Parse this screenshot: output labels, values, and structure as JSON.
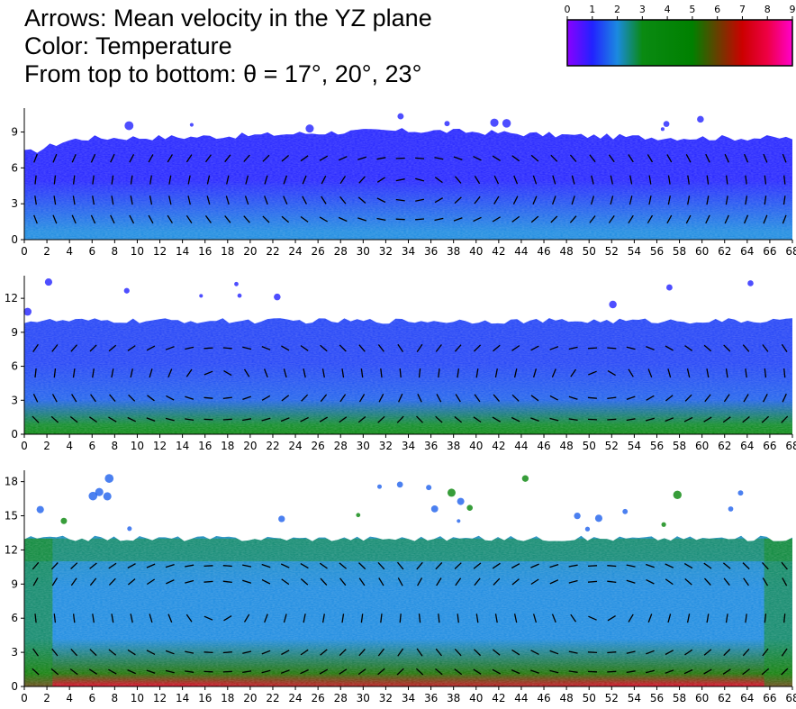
{
  "title_lines": [
    "Arrows: Mean velocity in the YZ plane",
    "Color: Temperature",
    "From top to bottom: θ = 17°, 20°, 23°"
  ],
  "colorbar": {
    "ticks": [
      "0",
      "1",
      "2",
      "3",
      "4",
      "5",
      "6",
      "7",
      "8",
      "9"
    ],
    "min": 0,
    "max": 9,
    "stops": [
      {
        "value": 0,
        "color": "#8a00ff"
      },
      {
        "value": 1,
        "color": "#2222ff"
      },
      {
        "value": 2,
        "color": "#1b8ae0"
      },
      {
        "value": 3,
        "color": "#0a8a12"
      },
      {
        "value": 5,
        "color": "#008000"
      },
      {
        "value": 7,
        "color": "#cc0000"
      },
      {
        "value": 8,
        "color": "#ee0044"
      },
      {
        "value": 9,
        "color": "#ff00cc"
      }
    ]
  },
  "chart_data": [
    {
      "type": "heatmap",
      "theta": "17°",
      "xticks": [
        "0",
        "2",
        "4",
        "6",
        "8",
        "10",
        "12",
        "14",
        "16",
        "18",
        "20",
        "22",
        "24",
        "26",
        "28",
        "30",
        "32",
        "34",
        "36",
        "38",
        "40",
        "42",
        "44",
        "46",
        "48",
        "50",
        "52",
        "54",
        "56",
        "58",
        "60",
        "62",
        "64",
        "66",
        "68"
      ],
      "yticks": [
        "0",
        "3",
        "6",
        "9"
      ],
      "xlim": [
        0,
        68
      ],
      "ylim": [
        0,
        11
      ],
      "surface_height": 8.5,
      "dominant_temperature": 1,
      "bottom_temperature": 2
    },
    {
      "type": "heatmap",
      "theta": "20°",
      "xticks": [
        "0",
        "2",
        "4",
        "6",
        "8",
        "10",
        "12",
        "14",
        "16",
        "18",
        "20",
        "22",
        "24",
        "26",
        "28",
        "30",
        "32",
        "34",
        "36",
        "38",
        "40",
        "42",
        "44",
        "46",
        "48",
        "50",
        "52",
        "54",
        "56",
        "58",
        "60",
        "62",
        "64",
        "66",
        "68"
      ],
      "yticks": [
        "0",
        "3",
        "6",
        "9",
        "12"
      ],
      "xlim": [
        0,
        68
      ],
      "ylim": [
        0,
        14
      ],
      "surface_height": 10,
      "dominant_temperature": 1.3,
      "bottom_temperature": 3.5
    },
    {
      "type": "heatmap",
      "theta": "23°",
      "xticks": [
        "0",
        "2",
        "4",
        "6",
        "8",
        "10",
        "12",
        "14",
        "16",
        "18",
        "20",
        "22",
        "24",
        "26",
        "28",
        "30",
        "32",
        "34",
        "36",
        "38",
        "40",
        "42",
        "44",
        "46",
        "48",
        "50",
        "52",
        "54",
        "56",
        "58",
        "60",
        "62",
        "64",
        "66",
        "68"
      ],
      "yticks": [
        "0",
        "3",
        "6",
        "9",
        "12",
        "15",
        "18"
      ],
      "xlim": [
        0,
        68
      ],
      "ylim": [
        0,
        19
      ],
      "surface_height": 13,
      "dominant_temperature": 2,
      "bottom_temperature": 7.5
    }
  ]
}
